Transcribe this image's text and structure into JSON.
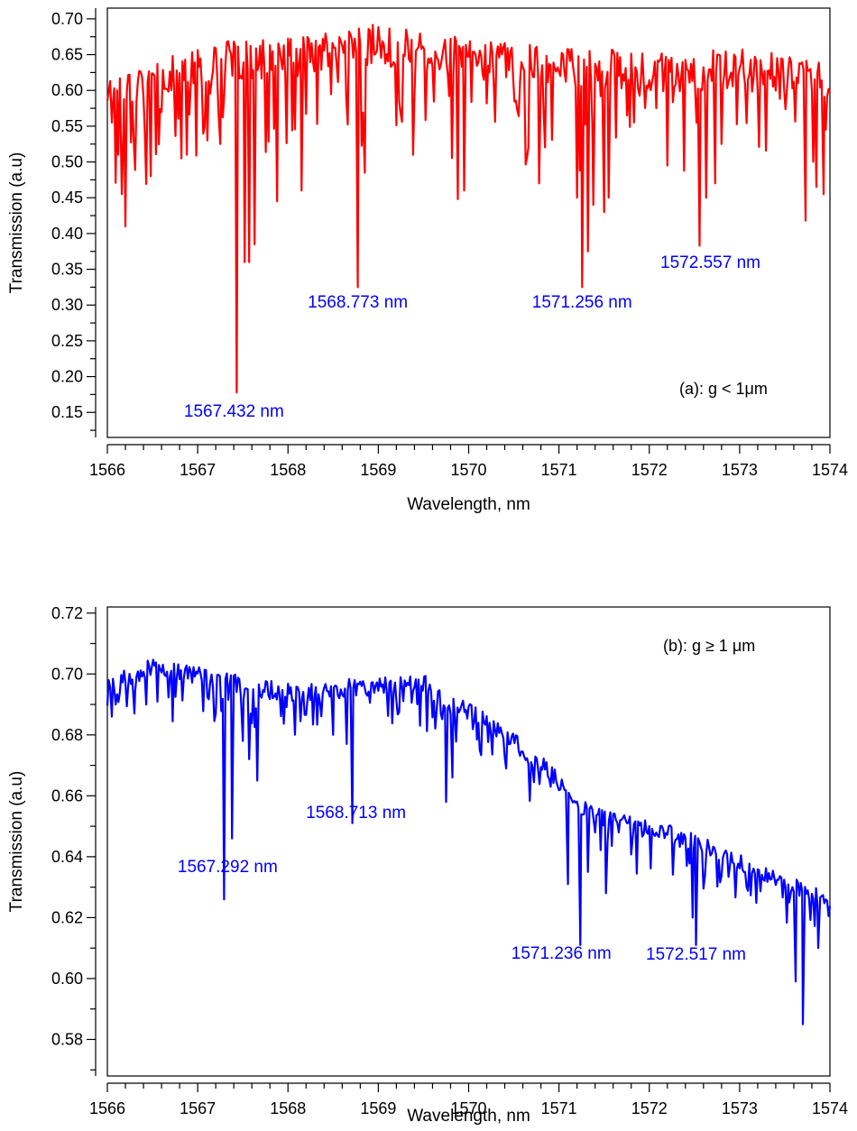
{
  "chart_data": [
    {
      "type": "line",
      "title": "",
      "xlabel": "Wavelength, nm",
      "ylabel": "Transmission (a.u)",
      "xlim": [
        1566,
        1574
      ],
      "ylim": [
        0.115,
        0.715
      ],
      "x_ticks": [
        1566,
        1567,
        1568,
        1569,
        1570,
        1571,
        1572,
        1573,
        1574
      ],
      "x_tick_labels": [
        "1566",
        "1567",
        "1568",
        "1569",
        "1570",
        "1571",
        "1572",
        "1573",
        "1574"
      ],
      "y_ticks": [
        0.15,
        0.2,
        0.25,
        0.3,
        0.35,
        0.4,
        0.45,
        0.5,
        0.55,
        0.6,
        0.65,
        0.7
      ],
      "y_tick_labels": [
        "0.15",
        "0.20",
        "0.25",
        "0.30",
        "0.35",
        "0.40",
        "0.45",
        "0.50",
        "0.55",
        "0.60",
        "0.65",
        "0.70"
      ],
      "grid": false,
      "legend": "none",
      "color": "#ff0000",
      "panel_label": "(a): g < 1μm",
      "baseline": {
        "x": [
          1566,
          1567.2,
          1568,
          1569,
          1570,
          1571,
          1572,
          1573,
          1574
        ],
        "y": [
          0.6,
          0.64,
          0.645,
          0.665,
          0.645,
          0.635,
          0.625,
          0.63,
          0.615
        ]
      },
      "dips": [
        {
          "x": 1566.05,
          "y": 0.555
        },
        {
          "x": 1566.12,
          "y": 0.51
        },
        {
          "x": 1566.16,
          "y": 0.455
        },
        {
          "x": 1566.2,
          "y": 0.41
        },
        {
          "x": 1566.48,
          "y": 0.48
        },
        {
          "x": 1566.82,
          "y": 0.505
        },
        {
          "x": 1566.88,
          "y": 0.51
        },
        {
          "x": 1567.25,
          "y": 0.525
        },
        {
          "x": 1567.432,
          "y": 0.178
        },
        {
          "x": 1567.52,
          "y": 0.36
        },
        {
          "x": 1567.57,
          "y": 0.36
        },
        {
          "x": 1567.63,
          "y": 0.385
        },
        {
          "x": 1567.88,
          "y": 0.445
        },
        {
          "x": 1568.15,
          "y": 0.46
        },
        {
          "x": 1568.773,
          "y": 0.325
        },
        {
          "x": 1568.85,
          "y": 0.485
        },
        {
          "x": 1569.88,
          "y": 0.448
        },
        {
          "x": 1569.95,
          "y": 0.46
        },
        {
          "x": 1570.78,
          "y": 0.47
        },
        {
          "x": 1571.2,
          "y": 0.45
        },
        {
          "x": 1571.256,
          "y": 0.325
        },
        {
          "x": 1571.32,
          "y": 0.375
        },
        {
          "x": 1571.38,
          "y": 0.44
        },
        {
          "x": 1571.5,
          "y": 0.43
        },
        {
          "x": 1571.55,
          "y": 0.45
        },
        {
          "x": 1572.2,
          "y": 0.495
        },
        {
          "x": 1572.557,
          "y": 0.383
        },
        {
          "x": 1572.63,
          "y": 0.45
        },
        {
          "x": 1572.73,
          "y": 0.47
        },
        {
          "x": 1573.73,
          "y": 0.418
        },
        {
          "x": 1573.85,
          "y": 0.465
        },
        {
          "x": 1573.93,
          "y": 0.455
        }
      ],
      "annotations": [
        {
          "text": "1567.432 nm",
          "x": 1567.432,
          "y": 0.178
        },
        {
          "text": "1568.773 nm",
          "x": 1568.773,
          "y": 0.325
        },
        {
          "text": "1571.256 nm",
          "x": 1571.256,
          "y": 0.325
        },
        {
          "text": "1572.557 nm",
          "x": 1572.557,
          "y": 0.383
        }
      ],
      "annotation_color": "#0000ff"
    },
    {
      "type": "line",
      "title": "",
      "xlabel": "Wavelength, nm",
      "ylabel": "Transmission (a.u)",
      "xlim": [
        1566,
        1574
      ],
      "ylim": [
        0.568,
        0.722
      ],
      "x_ticks": [
        1566,
        1567,
        1568,
        1569,
        1570,
        1571,
        1572,
        1573,
        1574
      ],
      "x_tick_labels": [
        "1566",
        "1567",
        "1568",
        "1569",
        "1570",
        "1571",
        "1572",
        "1573",
        "1574"
      ],
      "y_ticks": [
        0.58,
        0.6,
        0.62,
        0.64,
        0.66,
        0.68,
        0.7,
        0.72
      ],
      "y_tick_labels": [
        "0.58",
        "0.60",
        "0.62",
        "0.64",
        "0.66",
        "0.68",
        "0.70",
        "0.72"
      ],
      "grid": false,
      "legend": "none",
      "color": "#0000ff",
      "panel_label": "(b): g ≥ 1 μm",
      "baseline": {
        "x": [
          1566,
          1566.5,
          1567,
          1567.5,
          1568,
          1568.5,
          1569,
          1569.5,
          1569.8,
          1570.2,
          1570.6,
          1571,
          1571.3,
          1571.6,
          1572,
          1572.5,
          1573,
          1573.5,
          1574
        ],
        "y": [
          0.697,
          0.702,
          0.7,
          0.696,
          0.694,
          0.695,
          0.696,
          0.697,
          0.69,
          0.685,
          0.675,
          0.665,
          0.655,
          0.652,
          0.649,
          0.645,
          0.638,
          0.632,
          0.626
        ]
      },
      "dips": [
        {
          "x": 1566.05,
          "y": 0.686
        },
        {
          "x": 1566.3,
          "y": 0.687
        },
        {
          "x": 1567.2,
          "y": 0.687
        },
        {
          "x": 1567.292,
          "y": 0.626
        },
        {
          "x": 1567.38,
          "y": 0.646
        },
        {
          "x": 1567.5,
          "y": 0.678
        },
        {
          "x": 1567.57,
          "y": 0.672
        },
        {
          "x": 1567.66,
          "y": 0.665
        },
        {
          "x": 1568.5,
          "y": 0.68
        },
        {
          "x": 1568.65,
          "y": 0.677
        },
        {
          "x": 1568.713,
          "y": 0.651
        },
        {
          "x": 1569.75,
          "y": 0.658
        },
        {
          "x": 1569.82,
          "y": 0.666
        },
        {
          "x": 1571.1,
          "y": 0.631
        },
        {
          "x": 1571.236,
          "y": 0.611
        },
        {
          "x": 1571.32,
          "y": 0.635
        },
        {
          "x": 1571.52,
          "y": 0.628
        },
        {
          "x": 1572.48,
          "y": 0.62
        },
        {
          "x": 1572.517,
          "y": 0.611
        },
        {
          "x": 1573.55,
          "y": 0.625
        },
        {
          "x": 1573.62,
          "y": 0.599
        },
        {
          "x": 1573.7,
          "y": 0.585
        },
        {
          "x": 1573.87,
          "y": 0.61
        }
      ],
      "annotations": [
        {
          "text": "1567.292 nm",
          "x": 1567.292,
          "y": 0.626
        },
        {
          "text": "1568.713 nm",
          "x": 1568.713,
          "y": 0.651
        },
        {
          "text": "1571.236 nm",
          "x": 1571.236,
          "y": 0.611
        },
        {
          "text": "1572.517 nm",
          "x": 1572.517,
          "y": 0.611
        }
      ],
      "annotation_color": "#0000ff"
    }
  ]
}
